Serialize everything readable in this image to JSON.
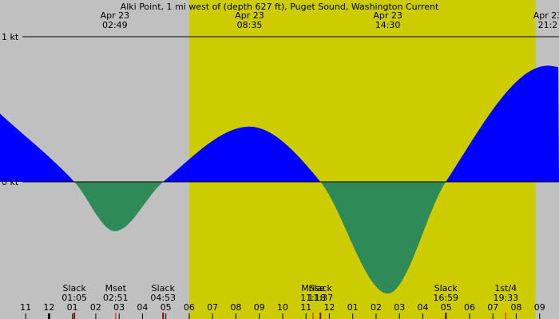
{
  "colors": {
    "background": "#c0c0c0",
    "daylight": "#cccc00",
    "flood": "#0000ff",
    "ebb": "#2e8b57",
    "axis": "#000000",
    "moon_tick": "#ff0000",
    "slack_tick": "#8b0000"
  },
  "chart_data": {
    "type": "area",
    "title": "Alki Point, 1 mi west of (depth 627 ft), Puget Sound, Washington Current",
    "y_axis_labels": [
      {
        "label": "1 kt",
        "value": 1
      },
      {
        "label": "0 kt",
        "value": 0
      }
    ],
    "ylim": [
      -0.75,
      1.25
    ],
    "x_range_hours": [
      -2.1,
      21.83
    ],
    "daylight_hours": [
      6.0,
      20.83
    ],
    "series": [
      {
        "values": [
          {
            "t": -2.1,
            "v": 0.47
          },
          {
            "t": 1.083,
            "v": 0
          },
          {
            "t": 2.817,
            "v": -0.34
          },
          {
            "t": 4.883,
            "v": 0
          },
          {
            "t": 8.583,
            "v": 0.38
          },
          {
            "t": 11.617,
            "v": 0
          },
          {
            "t": 14.5,
            "v": -0.77
          },
          {
            "t": 16.983,
            "v": 0
          },
          {
            "t": 21.35,
            "v": 0.8
          },
          {
            "t": 21.83,
            "v": 0.79
          }
        ]
      }
    ],
    "top_annotations": [
      {
        "date": "Apr 23",
        "time": "02:49",
        "hour": 2.817
      },
      {
        "date": "Apr 23",
        "time": "08:35",
        "hour": 8.583
      },
      {
        "date": "Apr 23",
        "time": "14:30",
        "hour": 14.5
      },
      {
        "date": "Apr 23",
        "time": "21:2",
        "hour": 21.35
      }
    ],
    "bottom_events": [
      {
        "label": "Slack",
        "time": "01:05",
        "hour": 1.083,
        "kind": "slack"
      },
      {
        "label": "Mset",
        "time": "02:51",
        "hour": 2.85,
        "kind": "moon"
      },
      {
        "label": "Slack",
        "time": "04:53",
        "hour": 4.883,
        "kind": "slack"
      },
      {
        "label": "Mrise",
        "time": "11:18",
        "hour": 11.3,
        "kind": "moon"
      },
      {
        "label": "Slack",
        "time": "11:37",
        "hour": 11.617,
        "kind": "slack"
      },
      {
        "label": "Slack",
        "time": "16:59",
        "hour": 16.983,
        "kind": "slack"
      },
      {
        "label": "1st/4",
        "time": "19:33",
        "hour": 19.55,
        "kind": "moon"
      }
    ],
    "x_ticks": [
      {
        "label": "11",
        "hour": -1
      },
      {
        "label": "12",
        "hour": 0
      },
      {
        "label": "01",
        "hour": 1
      },
      {
        "label": "02",
        "hour": 2
      },
      {
        "label": "03",
        "hour": 3
      },
      {
        "label": "04",
        "hour": 4
      },
      {
        "label": "05",
        "hour": 5
      },
      {
        "label": "06",
        "hour": 6
      },
      {
        "label": "07",
        "hour": 7
      },
      {
        "label": "08",
        "hour": 8
      },
      {
        "label": "09",
        "hour": 9
      },
      {
        "label": "10",
        "hour": 10
      },
      {
        "label": "11",
        "hour": 11
      },
      {
        "label": "12",
        "hour": 12
      },
      {
        "label": "01",
        "hour": 13
      },
      {
        "label": "02",
        "hour": 14
      },
      {
        "label": "03",
        "hour": 15
      },
      {
        "label": "04",
        "hour": 16
      },
      {
        "label": "05",
        "hour": 17
      },
      {
        "label": "06",
        "hour": 18
      },
      {
        "label": "07",
        "hour": 19
      },
      {
        "label": "08",
        "hour": 20
      },
      {
        "label": "09",
        "hour": 21
      }
    ]
  }
}
